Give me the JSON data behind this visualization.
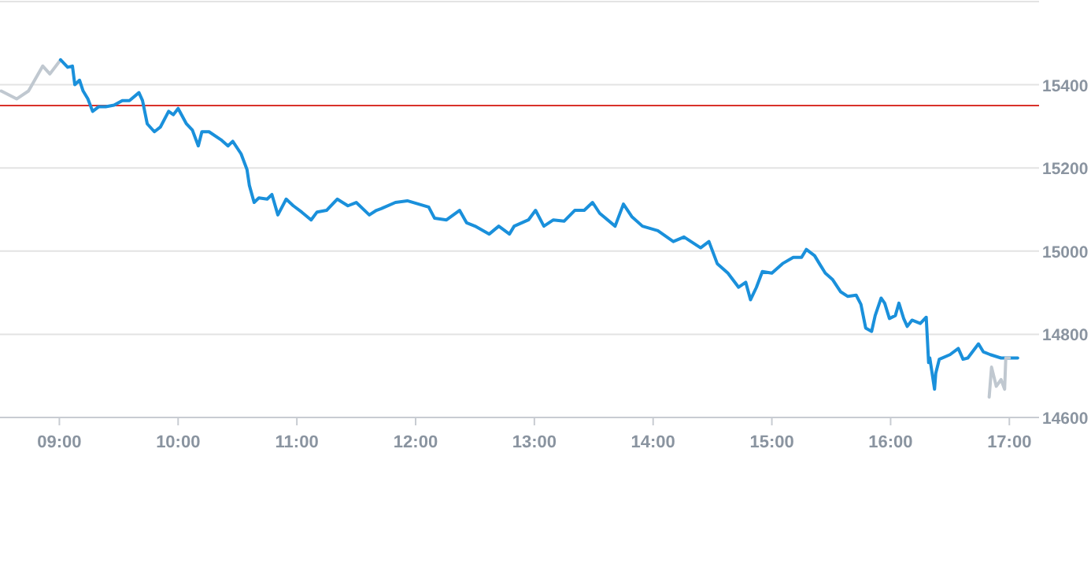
{
  "chart_data": {
    "type": "line",
    "xlim": [
      8.5,
      17.25
    ],
    "ylim": [
      14600,
      15600
    ],
    "xticks": [
      {
        "value": 9,
        "label": "09:00"
      },
      {
        "value": 10,
        "label": "10:00"
      },
      {
        "value": 11,
        "label": "11:00"
      },
      {
        "value": 12,
        "label": "12:00"
      },
      {
        "value": 13,
        "label": "13:00"
      },
      {
        "value": 14,
        "label": "14:00"
      },
      {
        "value": 15,
        "label": "15:00"
      },
      {
        "value": 16,
        "label": "16:00"
      },
      {
        "value": 17,
        "label": "17:00"
      }
    ],
    "yticks": [
      14600,
      14800,
      15000,
      15200,
      15400,
      {
        "value": 15600,
        "label": null
      }
    ],
    "grid": "y",
    "marker": "none",
    "line_style": "solid",
    "ref_lines": [
      {
        "axis": "y",
        "value": 15350,
        "color": "#d9312a"
      }
    ],
    "series": [
      {
        "color": "#c0c8d0",
        "x": [
          8.51,
          8.64,
          8.74,
          8.86,
          8.92,
          9.01
        ],
        "values": [
          15385,
          15366,
          15385,
          15445,
          15426,
          15460
        ]
      },
      {
        "color": "#1a90db",
        "x": [
          9.01,
          9.07,
          9.11,
          9.13,
          9.17,
          9.2,
          9.24,
          9.28,
          9.33,
          9.39,
          9.46,
          9.53,
          9.59,
          9.67,
          9.7,
          9.74,
          9.8,
          9.85,
          9.92,
          9.96,
          10.0,
          10.07,
          10.12,
          10.17,
          10.2,
          10.26,
          10.36,
          10.42,
          10.46,
          10.53,
          10.58,
          10.6,
          10.64,
          10.68,
          10.75,
          10.79,
          10.84,
          10.91,
          10.97,
          11.04,
          11.12,
          11.17,
          11.25,
          11.34,
          11.43,
          11.5,
          11.61,
          11.67,
          11.71,
          11.83,
          11.93,
          12.11,
          12.16,
          12.26,
          12.37,
          12.43,
          12.5,
          12.62,
          12.7,
          12.79,
          12.83,
          12.95,
          13.01,
          13.08,
          13.16,
          13.25,
          13.34,
          13.42,
          13.49,
          13.55,
          13.68,
          13.75,
          13.82,
          13.91,
          14.04,
          14.17,
          14.26,
          14.4,
          14.47,
          14.54,
          14.63,
          14.72,
          14.78,
          14.82,
          14.87,
          14.92,
          15.0,
          15.09,
          15.18,
          15.25,
          15.29,
          15.36,
          15.4,
          15.45,
          15.51,
          15.58,
          15.64,
          15.71,
          15.75,
          15.79,
          15.84,
          15.87,
          15.92,
          15.95,
          15.99,
          16.04,
          16.07,
          16.11,
          16.14,
          16.18,
          16.25,
          16.3,
          16.32,
          16.33,
          16.37,
          16.38,
          16.41,
          16.5,
          16.57,
          16.61,
          16.65,
          16.7,
          16.74,
          16.78,
          16.84,
          16.93,
          17.07
        ],
        "values": [
          15460,
          15442,
          15445,
          15400,
          15411,
          15385,
          15366,
          15336,
          15347,
          15347,
          15351,
          15362,
          15362,
          15381,
          15362,
          15306,
          15287,
          15298,
          15336,
          15328,
          15343,
          15306,
          15291,
          15253,
          15287,
          15287,
          15268,
          15253,
          15264,
          15234,
          15196,
          15158,
          15117,
          15128,
          15125,
          15136,
          15087,
          15125,
          15109,
          15094,
          15075,
          15094,
          15098,
          15125,
          15109,
          15117,
          15087,
          15098,
          15102,
          15117,
          15121,
          15106,
          15079,
          15075,
          15098,
          15068,
          15060,
          15041,
          15060,
          15041,
          15060,
          15075,
          15098,
          15060,
          15075,
          15072,
          15098,
          15098,
          15117,
          15091,
          15060,
          15113,
          15083,
          15060,
          15049,
          15023,
          15034,
          15008,
          15023,
          14970,
          14947,
          14913,
          14925,
          14883,
          14913,
          14951,
          14947,
          14970,
          14985,
          14985,
          15004,
          14989,
          14970,
          14947,
          14932,
          14902,
          14891,
          14894,
          14872,
          14815,
          14807,
          14845,
          14887,
          14875,
          14838,
          14845,
          14875,
          14838,
          14819,
          14834,
          14826,
          14841,
          14732,
          14743,
          14668,
          14706,
          14740,
          14751,
          14766,
          14740,
          14743,
          14762,
          14777,
          14758,
          14751,
          14743,
          14743
        ]
      },
      {
        "color": "#c0c8d0",
        "x": [
          16.83,
          16.85,
          16.89,
          16.93,
          16.96,
          16.97,
          17.0
        ],
        "values": [
          14649,
          14721,
          14675,
          14691,
          14668,
          14743,
          14743
        ]
      }
    ]
  }
}
